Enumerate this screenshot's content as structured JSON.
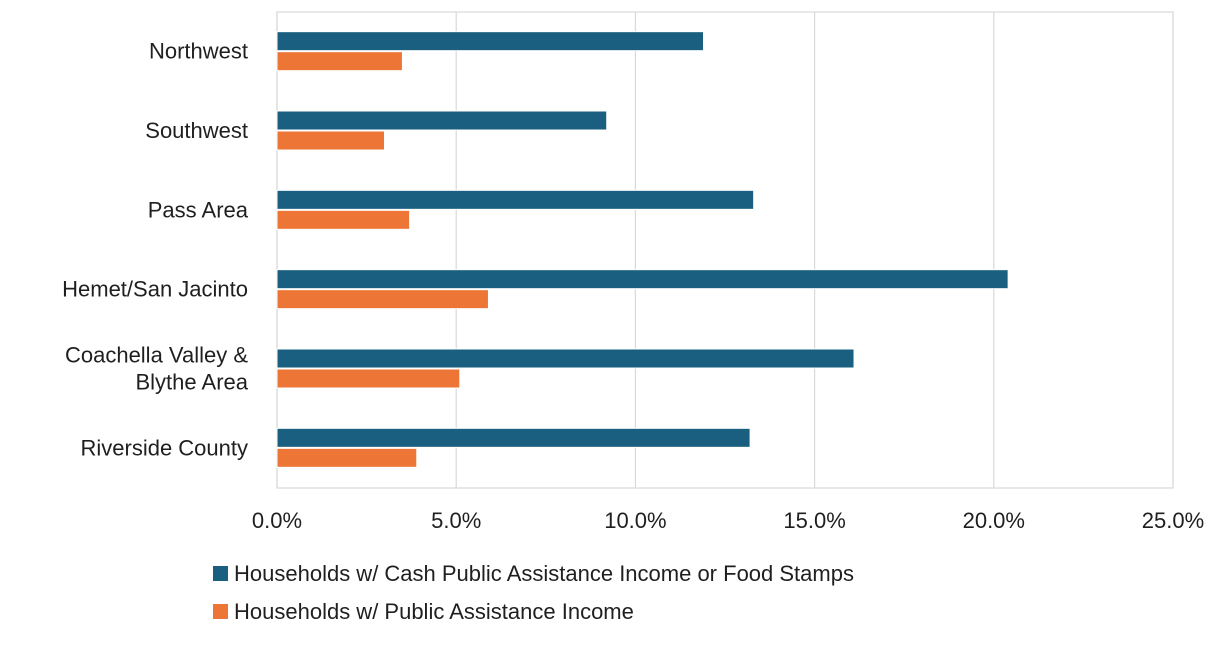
{
  "chart_data": {
    "type": "bar",
    "orientation": "horizontal",
    "categories": [
      "Northwest",
      "Southwest",
      "Pass Area",
      "Hemet/San Jacinto",
      "Coachella Valley & Blythe Area",
      "Riverside County"
    ],
    "category_lines": [
      [
        "Northwest"
      ],
      [
        "Southwest"
      ],
      [
        "Pass Area"
      ],
      [
        "Hemet/San Jacinto"
      ],
      [
        "Coachella Valley &",
        "Blythe Area"
      ],
      [
        "Riverside County"
      ]
    ],
    "series": [
      {
        "name": "Households w/ Cash Public Assistance Income or Food Stamps",
        "color": "#1a5f7f",
        "values": [
          11.9,
          9.2,
          13.3,
          20.4,
          16.1,
          13.2
        ]
      },
      {
        "name": "Households w/ Public Assistance Income",
        "color": "#ed7636",
        "values": [
          3.5,
          3.0,
          3.7,
          5.9,
          5.1,
          3.9
        ]
      }
    ],
    "xlim": [
      0,
      25
    ],
    "x_ticks": [
      "0.0%",
      "5.0%",
      "10.0%",
      "15.0%",
      "20.0%",
      "25.0%"
    ],
    "grid": true,
    "legend_position": "bottom",
    "title": "",
    "xlabel": "",
    "ylabel": ""
  }
}
